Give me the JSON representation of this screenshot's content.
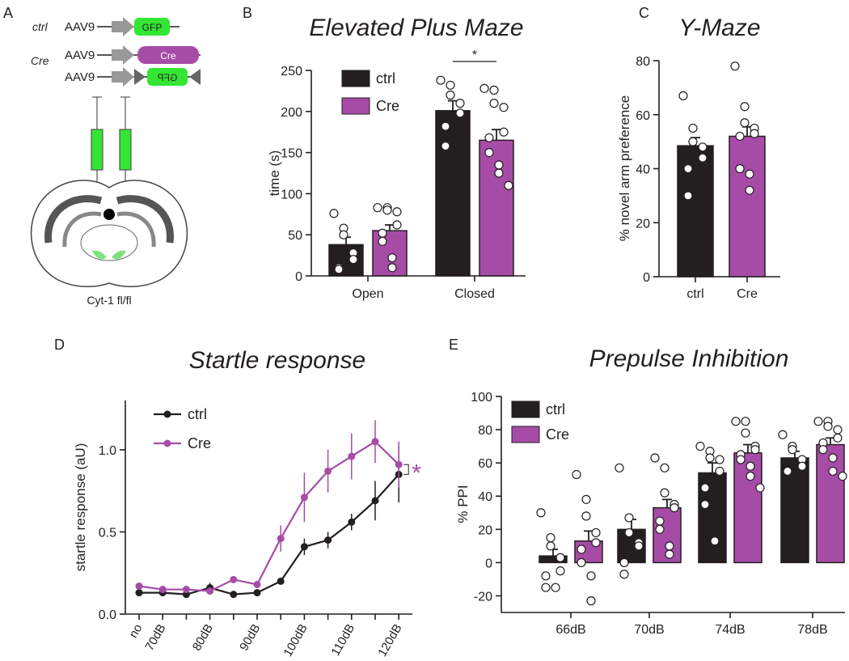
{
  "panel_a": {
    "label": "A",
    "ctrl_group": "ctrl",
    "cre_group": "Cre",
    "rows": [
      {
        "vector": "AAV9",
        "insert": "GFP"
      },
      {
        "vector": "AAV9",
        "insert": "Cre"
      },
      {
        "vector": "AAV9",
        "insert": "GFP"
      }
    ],
    "caption": "Cyt-1 fl/fl"
  },
  "chart_data": [
    {
      "type": "bar",
      "panel": "B",
      "title": "Elevated Plus Maze",
      "y_label": "time (s)",
      "categories": [
        "Open",
        "Closed"
      ],
      "series": [
        {
          "name": "ctrl",
          "color": "#231f20",
          "values": [
            38,
            201
          ],
          "errors": [
            9,
            12
          ],
          "points": [
            [
              76,
              58,
              50,
              28,
              20,
              10,
              8
            ],
            [
              238,
              232,
              220,
              210,
              198,
              182,
              158
            ]
          ]
        },
        {
          "name": "Cre",
          "color": "#a64ca6",
          "values": [
            55,
            165
          ],
          "errors": [
            7,
            13
          ],
          "points": [
            [
              83,
              83,
              80,
              78,
              62,
              52,
              42,
              22,
              10
            ],
            [
              228,
              226,
              210,
              205,
              175,
              168,
              150,
              135,
              125,
              110
            ]
          ]
        }
      ],
      "ylim": [
        0,
        250
      ],
      "yticks": [
        0,
        50,
        100,
        150,
        200,
        250
      ],
      "annotation": "*"
    },
    {
      "type": "bar",
      "panel": "C",
      "title": "Y-Maze",
      "y_label": "% novel arm preference",
      "categories": [
        "ctrl",
        "Cre"
      ],
      "values": [
        48.5,
        52
      ],
      "errors": [
        3,
        3.5
      ],
      "colors": [
        "#231f20",
        "#a64ca6"
      ],
      "points": [
        [
          67,
          55,
          50,
          48,
          44,
          40,
          30
        ],
        [
          78,
          63,
          57,
          55,
          53,
          52,
          40,
          38,
          32
        ]
      ],
      "ylim": [
        0,
        80
      ],
      "yticks": [
        0,
        20,
        40,
        60,
        80
      ]
    },
    {
      "type": "line",
      "panel": "D",
      "title": "Startle response",
      "y_label": "startle response (aU)",
      "categories": [
        "no",
        "70dB",
        null,
        "80dB",
        null,
        "90dB",
        null,
        "100dB",
        null,
        "110dB",
        null,
        "120dB"
      ],
      "series": [
        {
          "name": "ctrl",
          "color": "#231f20",
          "values": [
            0.13,
            0.13,
            0.12,
            0.16,
            0.12,
            0.13,
            0.2,
            0.41,
            0.45,
            0.56,
            0.69,
            0.85
          ],
          "errors": [
            0.01,
            0.01,
            0.01,
            0.03,
            0.01,
            0.01,
            0.02,
            0.05,
            0.05,
            0.05,
            0.12,
            0.17
          ]
        },
        {
          "name": "Cre",
          "color": "#a64ca6",
          "values": [
            0.17,
            0.15,
            0.15,
            0.14,
            0.21,
            0.18,
            0.46,
            0.71,
            0.87,
            0.96,
            1.05,
            0.91
          ],
          "errors": [
            0.01,
            0.01,
            0.01,
            0.01,
            0.02,
            0.01,
            0.08,
            0.15,
            0.13,
            0.14,
            0.13,
            0.14
          ]
        }
      ],
      "ylim": [
        0,
        1.3
      ],
      "yticks": [
        {
          "value": 0,
          "label": "0.0"
        },
        0.5,
        {
          "value": 1,
          "label": "1.0"
        }
      ],
      "annotation": "*"
    },
    {
      "type": "bar",
      "panel": "E",
      "title": "Prepulse Inhibition",
      "y_label": "% PPI",
      "categories": [
        "66dB",
        "70dB",
        "74dB",
        "78dB"
      ],
      "series": [
        {
          "name": "ctrl",
          "color": "#231f20",
          "values": [
            4,
            20,
            54,
            63
          ],
          "errors": [
            4,
            6,
            6,
            4
          ],
          "points": [
            [
              30,
              15,
              10,
              3,
              -5,
              -8,
              -15,
              -15
            ],
            [
              57,
              27,
              18,
              12,
              10,
              0,
              -7
            ],
            [
              70,
              67,
              63,
              62,
              55,
              45,
              35,
              13
            ],
            [
              77,
              70,
              68,
              62,
              58,
              55
            ]
          ]
        },
        {
          "name": "Cre",
          "color": "#a64ca6",
          "values": [
            13,
            33,
            66,
            71
          ],
          "errors": [
            6,
            5,
            5,
            4
          ],
          "points": [
            [
              53,
              38,
              28,
              18,
              12,
              8,
              0,
              -8,
              -23
            ],
            [
              63,
              57,
              42,
              35,
              33,
              25,
              20,
              10,
              5
            ],
            [
              85,
              85,
              78,
              70,
              68,
              65,
              62,
              58,
              52,
              45
            ],
            [
              85,
              85,
              82,
              80,
              75,
              72,
              68,
              63,
              55,
              52
            ]
          ]
        }
      ],
      "ylim": [
        -30,
        100
      ],
      "yticks": [
        -20,
        0,
        20,
        40,
        60,
        80,
        100
      ]
    }
  ]
}
